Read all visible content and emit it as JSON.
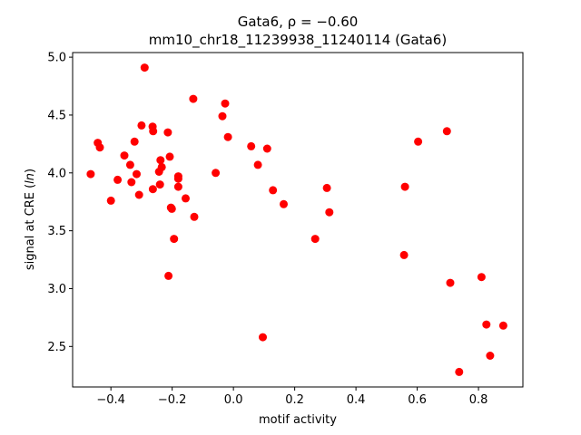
{
  "chart_data": {
    "type": "scatter",
    "title_line1": "Gata6, ρ = −0.60",
    "title_line2": "mm10_chr18_11239938_11240114 (Gata6)",
    "xlabel": "motif activity",
    "ylabel_prefix": "signal at CRE (",
    "ylabel_italic": "ln",
    "ylabel_suffix": ")",
    "xlim": [
      -0.525,
      0.945
    ],
    "ylim": [
      2.15,
      5.04
    ],
    "xticks": [
      -0.4,
      -0.2,
      0.0,
      0.2,
      0.4,
      0.6,
      0.8
    ],
    "xtick_labels": [
      "−0.4",
      "−0.2",
      "0.0",
      "0.2",
      "0.4",
      "0.6",
      "0.8"
    ],
    "yticks": [
      2.5,
      3.0,
      3.5,
      4.0,
      4.5,
      5.0
    ],
    "ytick_labels": [
      "2.5",
      "3.0",
      "3.5",
      "4.0",
      "4.5",
      "5.0"
    ],
    "grid": false,
    "marker_color": "#ff0000",
    "points": [
      {
        "x": -0.466,
        "y": 3.99
      },
      {
        "x": -0.443,
        "y": 4.26
      },
      {
        "x": -0.436,
        "y": 4.22
      },
      {
        "x": -0.4,
        "y": 3.76
      },
      {
        "x": -0.378,
        "y": 3.94
      },
      {
        "x": -0.356,
        "y": 4.15
      },
      {
        "x": -0.337,
        "y": 4.07
      },
      {
        "x": -0.333,
        "y": 3.92
      },
      {
        "x": -0.323,
        "y": 4.27
      },
      {
        "x": -0.316,
        "y": 3.99
      },
      {
        "x": -0.308,
        "y": 3.81
      },
      {
        "x": -0.3,
        "y": 4.41
      },
      {
        "x": -0.29,
        "y": 4.91
      },
      {
        "x": -0.264,
        "y": 4.4
      },
      {
        "x": -0.262,
        "y": 4.36
      },
      {
        "x": -0.263,
        "y": 3.86
      },
      {
        "x": -0.243,
        "y": 4.01
      },
      {
        "x": -0.24,
        "y": 3.9
      },
      {
        "x": -0.238,
        "y": 4.11
      },
      {
        "x": -0.234,
        "y": 4.05
      },
      {
        "x": -0.214,
        "y": 4.35
      },
      {
        "x": -0.208,
        "y": 4.14
      },
      {
        "x": -0.204,
        "y": 3.7
      },
      {
        "x": -0.201,
        "y": 3.69
      },
      {
        "x": -0.212,
        "y": 3.11
      },
      {
        "x": -0.194,
        "y": 3.43
      },
      {
        "x": -0.18,
        "y": 3.97
      },
      {
        "x": -0.18,
        "y": 3.95
      },
      {
        "x": -0.18,
        "y": 3.88
      },
      {
        "x": -0.156,
        "y": 3.78
      },
      {
        "x": -0.131,
        "y": 4.64
      },
      {
        "x": -0.128,
        "y": 3.62
      },
      {
        "x": -0.058,
        "y": 4.0
      },
      {
        "x": -0.036,
        "y": 4.49
      },
      {
        "x": -0.027,
        "y": 4.6
      },
      {
        "x": -0.018,
        "y": 4.31
      },
      {
        "x": 0.058,
        "y": 4.23
      },
      {
        "x": 0.08,
        "y": 4.07
      },
      {
        "x": 0.096,
        "y": 2.58
      },
      {
        "x": 0.11,
        "y": 4.21
      },
      {
        "x": 0.129,
        "y": 3.85
      },
      {
        "x": 0.164,
        "y": 3.73
      },
      {
        "x": 0.267,
        "y": 3.43
      },
      {
        "x": 0.305,
        "y": 3.87
      },
      {
        "x": 0.313,
        "y": 3.66
      },
      {
        "x": 0.557,
        "y": 3.29
      },
      {
        "x": 0.56,
        "y": 3.88
      },
      {
        "x": 0.603,
        "y": 4.27
      },
      {
        "x": 0.697,
        "y": 4.36
      },
      {
        "x": 0.708,
        "y": 3.05
      },
      {
        "x": 0.737,
        "y": 2.28
      },
      {
        "x": 0.81,
        "y": 3.1
      },
      {
        "x": 0.826,
        "y": 2.69
      },
      {
        "x": 0.838,
        "y": 2.42
      },
      {
        "x": 0.881,
        "y": 2.68
      }
    ]
  }
}
